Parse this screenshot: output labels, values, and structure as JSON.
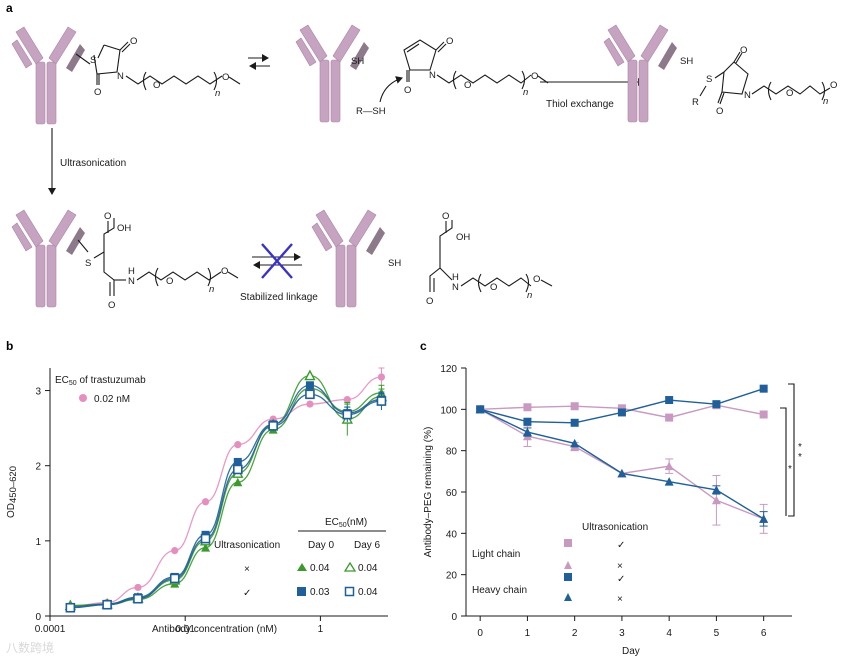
{
  "panel_a": {
    "label": "a",
    "groups": {
      "s": "S",
      "sh": "SH",
      "rsh": "R—SH",
      "r": "R",
      "o": "O",
      "n": "N",
      "oh": "OH",
      "h": "H",
      "n_sub": "n"
    },
    "arrows": {
      "down_label": "Ultrasonication",
      "thiol_label": "Thiol exchange",
      "stabilized_label": "Stabilized linkage"
    }
  },
  "panel_b": {
    "label": "b",
    "ec50_header": "EC50 of trastuzumab",
    "ec50_sub": "50",
    "trastuzumab_value": "0.02 nM",
    "table": {
      "title": "EC50(nM)",
      "col_ultra": "Ultrasonication",
      "col_day0": "Day 0",
      "col_day6": "Day 6",
      "rows": [
        {
          "cond": "×",
          "day0": "0.04",
          "day6": "0.04"
        },
        {
          "cond": "✓",
          "day0": "0.03",
          "day6": "0.04"
        }
      ]
    },
    "colors": {
      "trastuzumab": "#e58fc0",
      "green": "#3a9a2c",
      "blue": "#1f5f9a"
    }
  },
  "panel_c": {
    "label": "c",
    "legend": {
      "header": "Ultrasonication",
      "light": "Light chain",
      "heavy": "Heavy chain",
      "marks": [
        "✓",
        "×",
        "✓",
        "×"
      ]
    },
    "significance": "*",
    "colors": {
      "light": "#c89ac1",
      "heavy": "#1f5f9a"
    }
  },
  "watermark": "八数跨境",
  "chart_data": [
    {
      "type": "scatter",
      "title": "",
      "xlabel": "Antibody concentration (nM)",
      "ylabel": "OD450–620",
      "xscale": "log",
      "xlim": [
        0.0001,
        10
      ],
      "ylim": [
        0,
        3.3
      ],
      "xticks": [
        0.0001,
        0.01,
        1
      ],
      "xtick_labels": [
        "0.0001",
        "0.01",
        "1"
      ],
      "yticks": [
        0,
        1,
        2,
        3
      ],
      "x": [
        0.0002,
        0.0007,
        0.002,
        0.007,
        0.02,
        0.06,
        0.2,
        0.7,
        2.5,
        8
      ],
      "series": [
        {
          "name": "0.02 nM",
          "marker": "circle",
          "color": "#e58fc0",
          "values": [
            0.13,
            0.18,
            0.38,
            0.87,
            1.52,
            2.28,
            2.62,
            2.82,
            2.88,
            3.18
          ],
          "error": [
            0,
            0,
            0,
            0,
            0,
            0,
            0,
            0,
            0,
            0.12
          ]
        },
        {
          "name": "0.04",
          "marker": "triangle-filled",
          "color": "#3a9a2c",
          "values": [
            0.14,
            0.15,
            0.22,
            0.43,
            0.91,
            1.78,
            2.48,
            3.03,
            2.72,
            2.97
          ],
          "error": [
            0,
            0,
            0,
            0,
            0,
            0,
            0,
            0,
            0.1,
            0.1
          ]
        },
        {
          "name": "0.04",
          "marker": "triangle-open",
          "color": "#3a9a2c",
          "values": [
            0.14,
            0.16,
            0.24,
            0.48,
            1.0,
            1.9,
            2.55,
            3.2,
            2.62,
            2.92
          ],
          "error": [
            0,
            0,
            0,
            0,
            0,
            0,
            0,
            0,
            0.22,
            0.1
          ]
        },
        {
          "name": "0.03",
          "marker": "square-filled",
          "color": "#1f5f9a",
          "values": [
            0.12,
            0.16,
            0.25,
            0.52,
            1.08,
            2.05,
            2.55,
            3.07,
            2.7,
            2.88
          ],
          "error": [
            0,
            0,
            0,
            0,
            0,
            0,
            0,
            0,
            0.08,
            0.08
          ]
        },
        {
          "name": "0.04",
          "marker": "square-open",
          "color": "#1f5f9a",
          "values": [
            0.11,
            0.15,
            0.23,
            0.5,
            1.03,
            1.95,
            2.53,
            2.95,
            2.68,
            2.86
          ],
          "error": [
            0,
            0,
            0,
            0,
            0,
            0,
            0,
            0,
            0.1,
            0.12
          ]
        }
      ]
    },
    {
      "type": "line",
      "title": "",
      "xlabel": "Day",
      "ylabel": "Antibody–PEG remaining (%)",
      "xlim": [
        -0.3,
        6.6
      ],
      "ylim": [
        0,
        120
      ],
      "xticks": [
        0,
        1,
        2,
        3,
        4,
        5,
        6
      ],
      "yticks": [
        0,
        20,
        40,
        60,
        80,
        100,
        120
      ],
      "x": [
        0,
        1,
        2,
        3,
        4,
        5,
        6
      ],
      "series": [
        {
          "name": "Light chain ✓",
          "marker": "square",
          "color": "#c89ac1",
          "values": [
            100,
            101,
            101.5,
            100.5,
            96,
            102,
            97.5
          ],
          "error": [
            0,
            1,
            1,
            1,
            1,
            1,
            1
          ]
        },
        {
          "name": "Light chain ×",
          "marker": "triangle",
          "color": "#c89ac1",
          "values": [
            100,
            87,
            82,
            69,
            72.5,
            56,
            47
          ],
          "error": [
            0,
            5,
            2,
            1,
            3.5,
            12,
            7
          ]
        },
        {
          "name": "Heavy chain ✓",
          "marker": "square",
          "color": "#1f5f9a",
          "values": [
            100,
            94,
            93.5,
            98.5,
            104.5,
            102.5,
            110
          ],
          "error": [
            0,
            1,
            1,
            1,
            1,
            1,
            1
          ]
        },
        {
          "name": "Heavy chain ×",
          "marker": "triangle",
          "color": "#1f5f9a",
          "values": [
            100,
            89,
            83.5,
            69,
            65,
            61,
            47
          ],
          "error": [
            0,
            2,
            1,
            1,
            1,
            2,
            3.5
          ]
        }
      ]
    }
  ]
}
